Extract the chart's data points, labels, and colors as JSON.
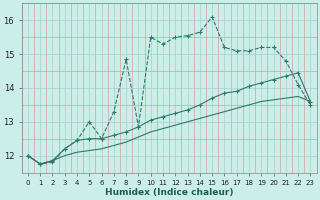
{
  "xlabel": "Humidex (Indice chaleur)",
  "bg_color": "#cceee8",
  "line_color": "#2d7a6a",
  "xlim": [
    -0.5,
    23.5
  ],
  "ylim": [
    11.5,
    16.5
  ],
  "yticks": [
    12,
    13,
    14,
    15,
    16
  ],
  "xticks": [
    0,
    1,
    2,
    3,
    4,
    5,
    6,
    7,
    8,
    9,
    10,
    11,
    12,
    13,
    14,
    15,
    16,
    17,
    18,
    19,
    20,
    21,
    22,
    23
  ],
  "line1_x": [
    0,
    1,
    2,
    3,
    4,
    5,
    6,
    7,
    8,
    9,
    10,
    11,
    12,
    13,
    14,
    15,
    16,
    17,
    18,
    19,
    20,
    21,
    22,
    23
  ],
  "line1_y": [
    12.0,
    11.75,
    11.8,
    12.2,
    12.45,
    13.0,
    12.5,
    13.3,
    14.85,
    12.85,
    15.5,
    15.3,
    15.5,
    15.55,
    15.65,
    16.1,
    15.2,
    15.1,
    15.1,
    15.2,
    15.2,
    14.8,
    14.1,
    13.5
  ],
  "line2_x": [
    0,
    1,
    2,
    3,
    4,
    5,
    6,
    7,
    8,
    9,
    10,
    11,
    12,
    13,
    14,
    15,
    16,
    17,
    18,
    19,
    20,
    21,
    22,
    23
  ],
  "line2_y": [
    12.0,
    11.75,
    11.85,
    12.2,
    12.45,
    12.5,
    12.5,
    12.6,
    12.7,
    12.85,
    13.05,
    13.15,
    13.25,
    13.35,
    13.5,
    13.7,
    13.85,
    13.9,
    14.05,
    14.15,
    14.25,
    14.35,
    14.45,
    13.6
  ],
  "line3_x": [
    0,
    1,
    2,
    3,
    4,
    5,
    6,
    7,
    8,
    9,
    10,
    11,
    12,
    13,
    14,
    15,
    16,
    17,
    18,
    19,
    20,
    21,
    22,
    23
  ],
  "line3_y": [
    12.0,
    11.75,
    11.85,
    12.0,
    12.1,
    12.15,
    12.2,
    12.3,
    12.4,
    12.55,
    12.7,
    12.8,
    12.9,
    13.0,
    13.1,
    13.2,
    13.3,
    13.4,
    13.5,
    13.6,
    13.65,
    13.7,
    13.75,
    13.6
  ]
}
